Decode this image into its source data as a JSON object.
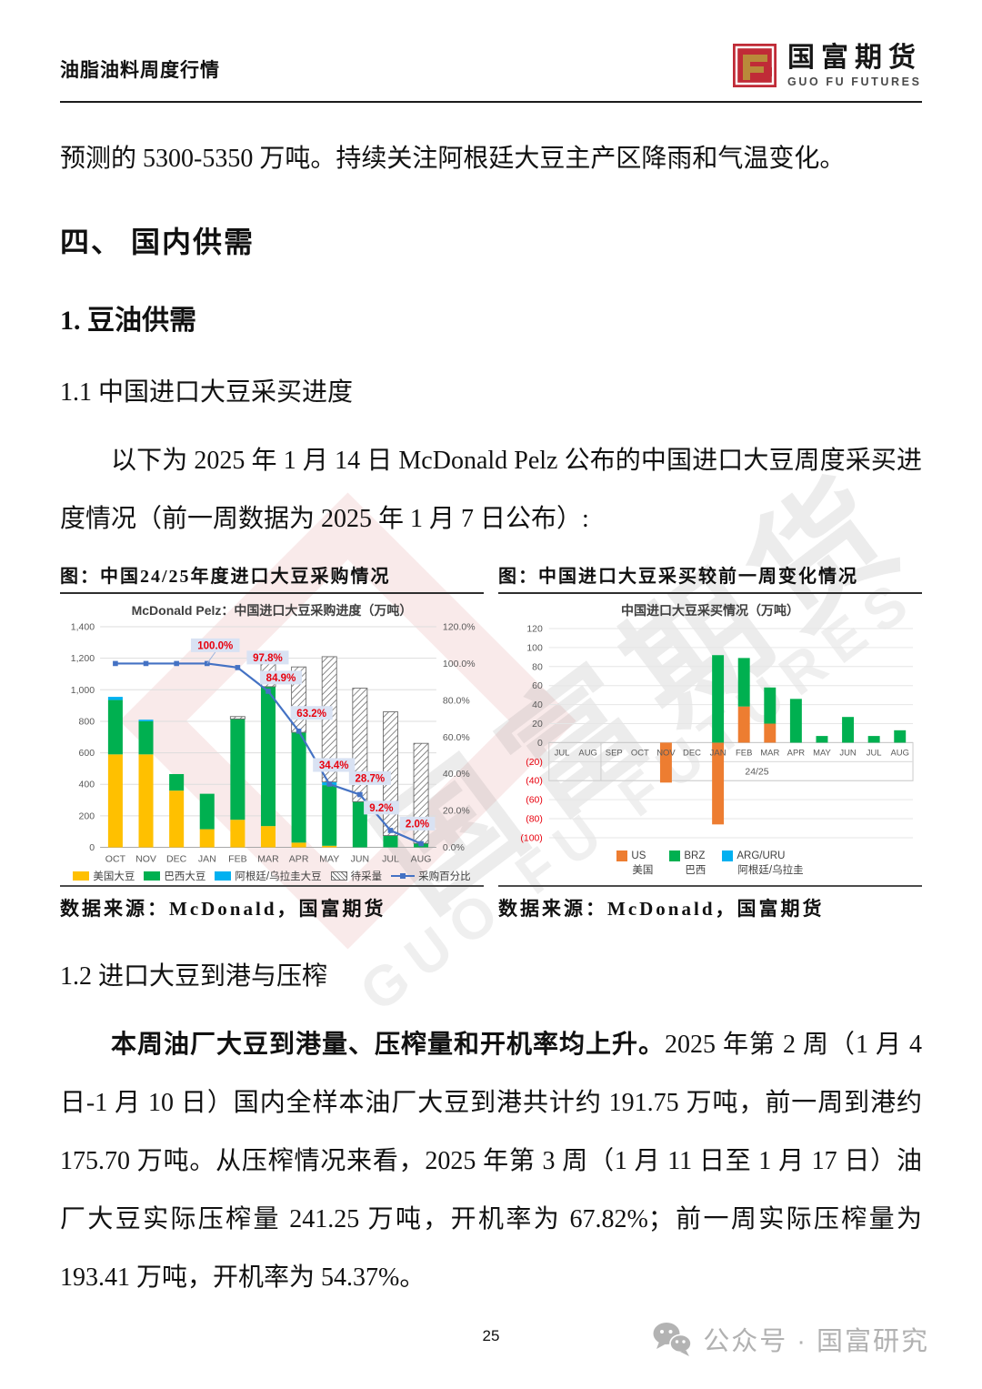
{
  "header": {
    "doc_title": "油脂油料周度行情",
    "brand_cn": "国富期货",
    "brand_en": "GUO FU FUTURES",
    "brand_red": "#C02B37",
    "brand_gold": "#B98A3A"
  },
  "watermark": {
    "cn": "国富期货",
    "en": "GUO FU FUTURES"
  },
  "body": {
    "intro": "预测的 5300-5350 万吨。持续关注阿根廷大豆主产区降雨和气温变化。",
    "h_section": "四、 国内供需",
    "h_sub": "1. 豆油供需",
    "h_111": "1.1 中国进口大豆采买进度",
    "para_purchase": "以下为 2025 年 1 月 14 日 McDonald Pelz 公布的中国进口大豆周度采买进度情况（前一周数据为 2025 年 1 月 7 日公布）:",
    "h_12": "1.2 进口大豆到港与压榨",
    "para_crush_bold": "本周油厂大豆到港量、压榨量和开机率均上升。",
    "para_crush_rest": "2025 年第 2 周（1 月 4 日-1 月 10 日）国内全样本油厂大豆到港共计约 191.75 万吨，前一周到港约 175.70 万吨。从压榨情况来看，2025 年第 3 周（1 月 11 日至 1 月 17 日）油厂大豆实际压榨量 241.25 万吨，开机率为 67.82%；前一周实际压榨量为 193.41 万吨，开机率为 54.37%。"
  },
  "chart_data": [
    {
      "type": "bar",
      "caption": "图：中国24/25年度进口大豆采购情况",
      "title": "McDonald Pelz：中国进口大豆采购进度（万吨）",
      "categories": [
        "OCT",
        "NOV",
        "DEC",
        "JAN",
        "FEB",
        "MAR",
        "APR",
        "MAY",
        "JUN",
        "JUL",
        "AUG"
      ],
      "series": [
        {
          "name": "美国大豆",
          "color": "#FFC000",
          "values": [
            590,
            590,
            360,
            115,
            175,
            135,
            30,
            10,
            0,
            0,
            0
          ]
        },
        {
          "name": "巴西大豆",
          "color": "#00B050",
          "values": [
            345,
            210,
            105,
            225,
            640,
            885,
            700,
            385,
            290,
            75,
            25
          ]
        },
        {
          "name": "阿根廷/乌拉圭大豆",
          "color": "#00B0F0",
          "values": [
            20,
            10,
            0,
            0,
            0,
            0,
            0,
            20,
            0,
            0,
            0
          ]
        },
        {
          "name": "待采量",
          "color": "hatch",
          "values": [
            0,
            0,
            0,
            0,
            15,
            180,
            415,
            795,
            720,
            785,
            635
          ]
        }
      ],
      "line": {
        "name": "采购百分比",
        "color": "#4472C4",
        "values": [
          100,
          100,
          100,
          100,
          97.8,
          84.9,
          63.2,
          34.4,
          28.7,
          9.2,
          2.0
        ],
        "labels": [
          "",
          "",
          "",
          "100.0%",
          "97.8%",
          "84.9%",
          "63.2%",
          "34.4%",
          "28.7%",
          "9.2%",
          "2.0%"
        ],
        "label_color": "#E8000D",
        "label_bg": "#D9E2F3"
      },
      "axis_left": {
        "min": 0,
        "max": 1400,
        "ticks": [
          "0",
          "200",
          "400",
          "600",
          "800",
          "1,000",
          "1,200",
          "1,400"
        ]
      },
      "axis_right": {
        "min": 0,
        "max": 120,
        "ticks": [
          "0.0%",
          "20.0%",
          "40.0%",
          "60.0%",
          "80.0%",
          "100.0%",
          "120.0%"
        ]
      },
      "legend_position": "bottom",
      "grid": true,
      "source": "数据来源：McDonald，国富期货"
    },
    {
      "type": "bar",
      "caption": "图：中国进口大豆采买较前一周变化情况",
      "title": "中国进口大豆采买情况（万吨）",
      "categories": [
        "JUL",
        "AUG",
        "SEP",
        "OCT",
        "NOV",
        "DEC",
        "JAN",
        "FEB",
        "MAR",
        "APR",
        "MAY",
        "JUN",
        "JUL",
        "AUG"
      ],
      "group_label": "24/25",
      "series": [
        {
          "name_en": "US",
          "name_cn": "美国",
          "color": "#ED7D31",
          "values": [
            0,
            0,
            0,
            0,
            -42,
            0,
            -86,
            38,
            20,
            0,
            0,
            0,
            0,
            0
          ]
        },
        {
          "name_en": "BRZ",
          "name_cn": "巴西",
          "color": "#00B050",
          "values": [
            0,
            0,
            0,
            0,
            0,
            0,
            92,
            51,
            38,
            46,
            7,
            27,
            7,
            13
          ]
        },
        {
          "name_en": "ARG/URU",
          "name_cn": "阿根廷/乌拉圭",
          "color": "#00B0F0",
          "values": [
            0,
            0,
            0,
            0,
            0,
            0,
            0,
            0,
            0,
            0,
            0,
            0,
            0,
            0
          ]
        }
      ],
      "axis": {
        "min": -100,
        "max": 120,
        "ticks": [
          "120",
          "100",
          "80",
          "60",
          "40",
          "20",
          "0",
          "(20)",
          "(40)",
          "(60)",
          "(80)",
          "(100)"
        ],
        "negative_color": "#E8000D"
      },
      "legend_position": "bottom",
      "grid": true,
      "source": "数据来源：McDonald，国富期货"
    }
  ],
  "footer": {
    "page_number": "25",
    "wechat_label": "公众号 · 国富研究"
  }
}
